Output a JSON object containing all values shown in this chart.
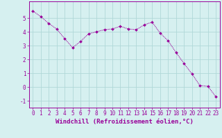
{
  "x": [
    0,
    1,
    2,
    3,
    4,
    5,
    6,
    7,
    8,
    9,
    10,
    11,
    12,
    13,
    14,
    15,
    16,
    17,
    18,
    19,
    20,
    21,
    22,
    23
  ],
  "y": [
    5.5,
    5.1,
    4.6,
    4.2,
    3.5,
    2.85,
    3.3,
    3.85,
    4.0,
    4.15,
    4.2,
    4.4,
    4.2,
    4.15,
    4.5,
    4.7,
    3.9,
    3.35,
    2.5,
    1.7,
    0.95,
    0.1,
    0.05,
    -0.7
  ],
  "line_color": "#990099",
  "marker": "D",
  "marker_size": 2.0,
  "bg_color": "#d6f0f0",
  "grid_color": "#b0d8d8",
  "xlabel": "Windchill (Refroidissement éolien,°C)",
  "xlabel_color": "#990099",
  "xlabel_fontsize": 6.5,
  "ylim": [
    -1.5,
    6.2
  ],
  "xlim": [
    -0.5,
    23.5
  ],
  "yticks": [
    -1,
    0,
    1,
    2,
    3,
    4,
    5
  ],
  "xticks": [
    0,
    1,
    2,
    3,
    4,
    5,
    6,
    7,
    8,
    9,
    10,
    11,
    12,
    13,
    14,
    15,
    16,
    17,
    18,
    19,
    20,
    21,
    22,
    23
  ],
  "tick_fontsize": 5.5,
  "tick_color": "#990099",
  "spine_color": "#990099",
  "linewidth": 0.8
}
